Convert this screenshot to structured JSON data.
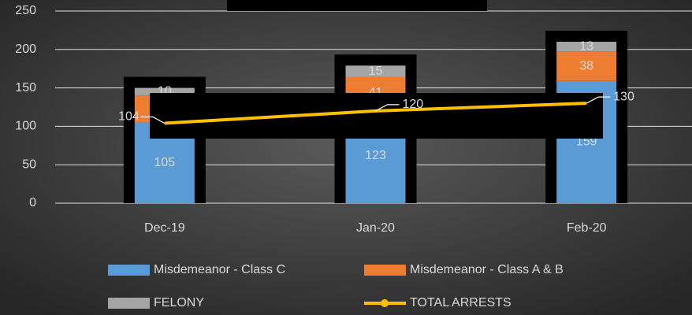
{
  "chart_data": {
    "type": "bar",
    "categories": [
      "Dec-19",
      "Jan-20",
      "Feb-20"
    ],
    "series": [
      {
        "name": "Misdemeanor - Class C",
        "color": "#5b9bd5",
        "values": [
          105,
          123,
          159
        ]
      },
      {
        "name": "Misdemeanor - Class A & B",
        "color": "#ed7d31",
        "values": [
          35,
          41,
          38
        ]
      },
      {
        "name": "FELONY",
        "color": "#a5a5a5",
        "values": [
          10,
          15,
          13
        ]
      },
      {
        "name": "TOTAL ARRESTS",
        "type": "line",
        "color": "#ffc000",
        "values": [
          104,
          120,
          130
        ]
      }
    ],
    "stacked": true,
    "ylim": [
      0,
      250
    ],
    "yticks": [
      0,
      50,
      100,
      150,
      200,
      250
    ],
    "grid": true,
    "legend": "bottom"
  }
}
